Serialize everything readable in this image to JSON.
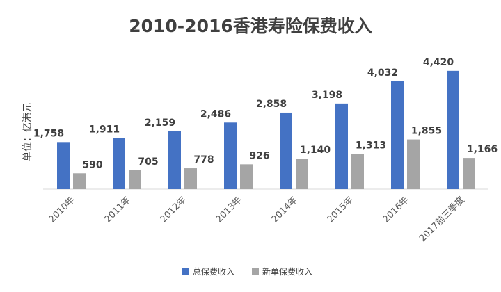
{
  "chart_data": {
    "type": "bar",
    "title": "2010-2016香港寿险保费收入",
    "ylabel": "单位：亿港元",
    "xlabel": "",
    "categories": [
      "2010年",
      "2011年",
      "2012年",
      "2013年",
      "2014年",
      "2015年",
      "2016年",
      "2017前三季度"
    ],
    "series": [
      {
        "name": "总保费收入",
        "values": [
          1758,
          1911,
          2159,
          2486,
          2858,
          3198,
          4032,
          4420
        ],
        "labels": [
          "1,758",
          "1,911",
          "2,159",
          "2,486",
          "2,858",
          "3,198",
          "4,032",
          "4,420"
        ],
        "color": "#4472c4"
      },
      {
        "name": "新单保费收入",
        "values": [
          590,
          705,
          778,
          926,
          1140,
          1313,
          1855,
          1166
        ],
        "labels": [
          "590",
          "705",
          "778",
          "926",
          "1,140",
          "1,313",
          "1,855",
          "1,166"
        ],
        "color": "#a5a5a5"
      }
    ],
    "ylim": [
      0,
      4500
    ],
    "grid": false,
    "legend": "bottom"
  }
}
